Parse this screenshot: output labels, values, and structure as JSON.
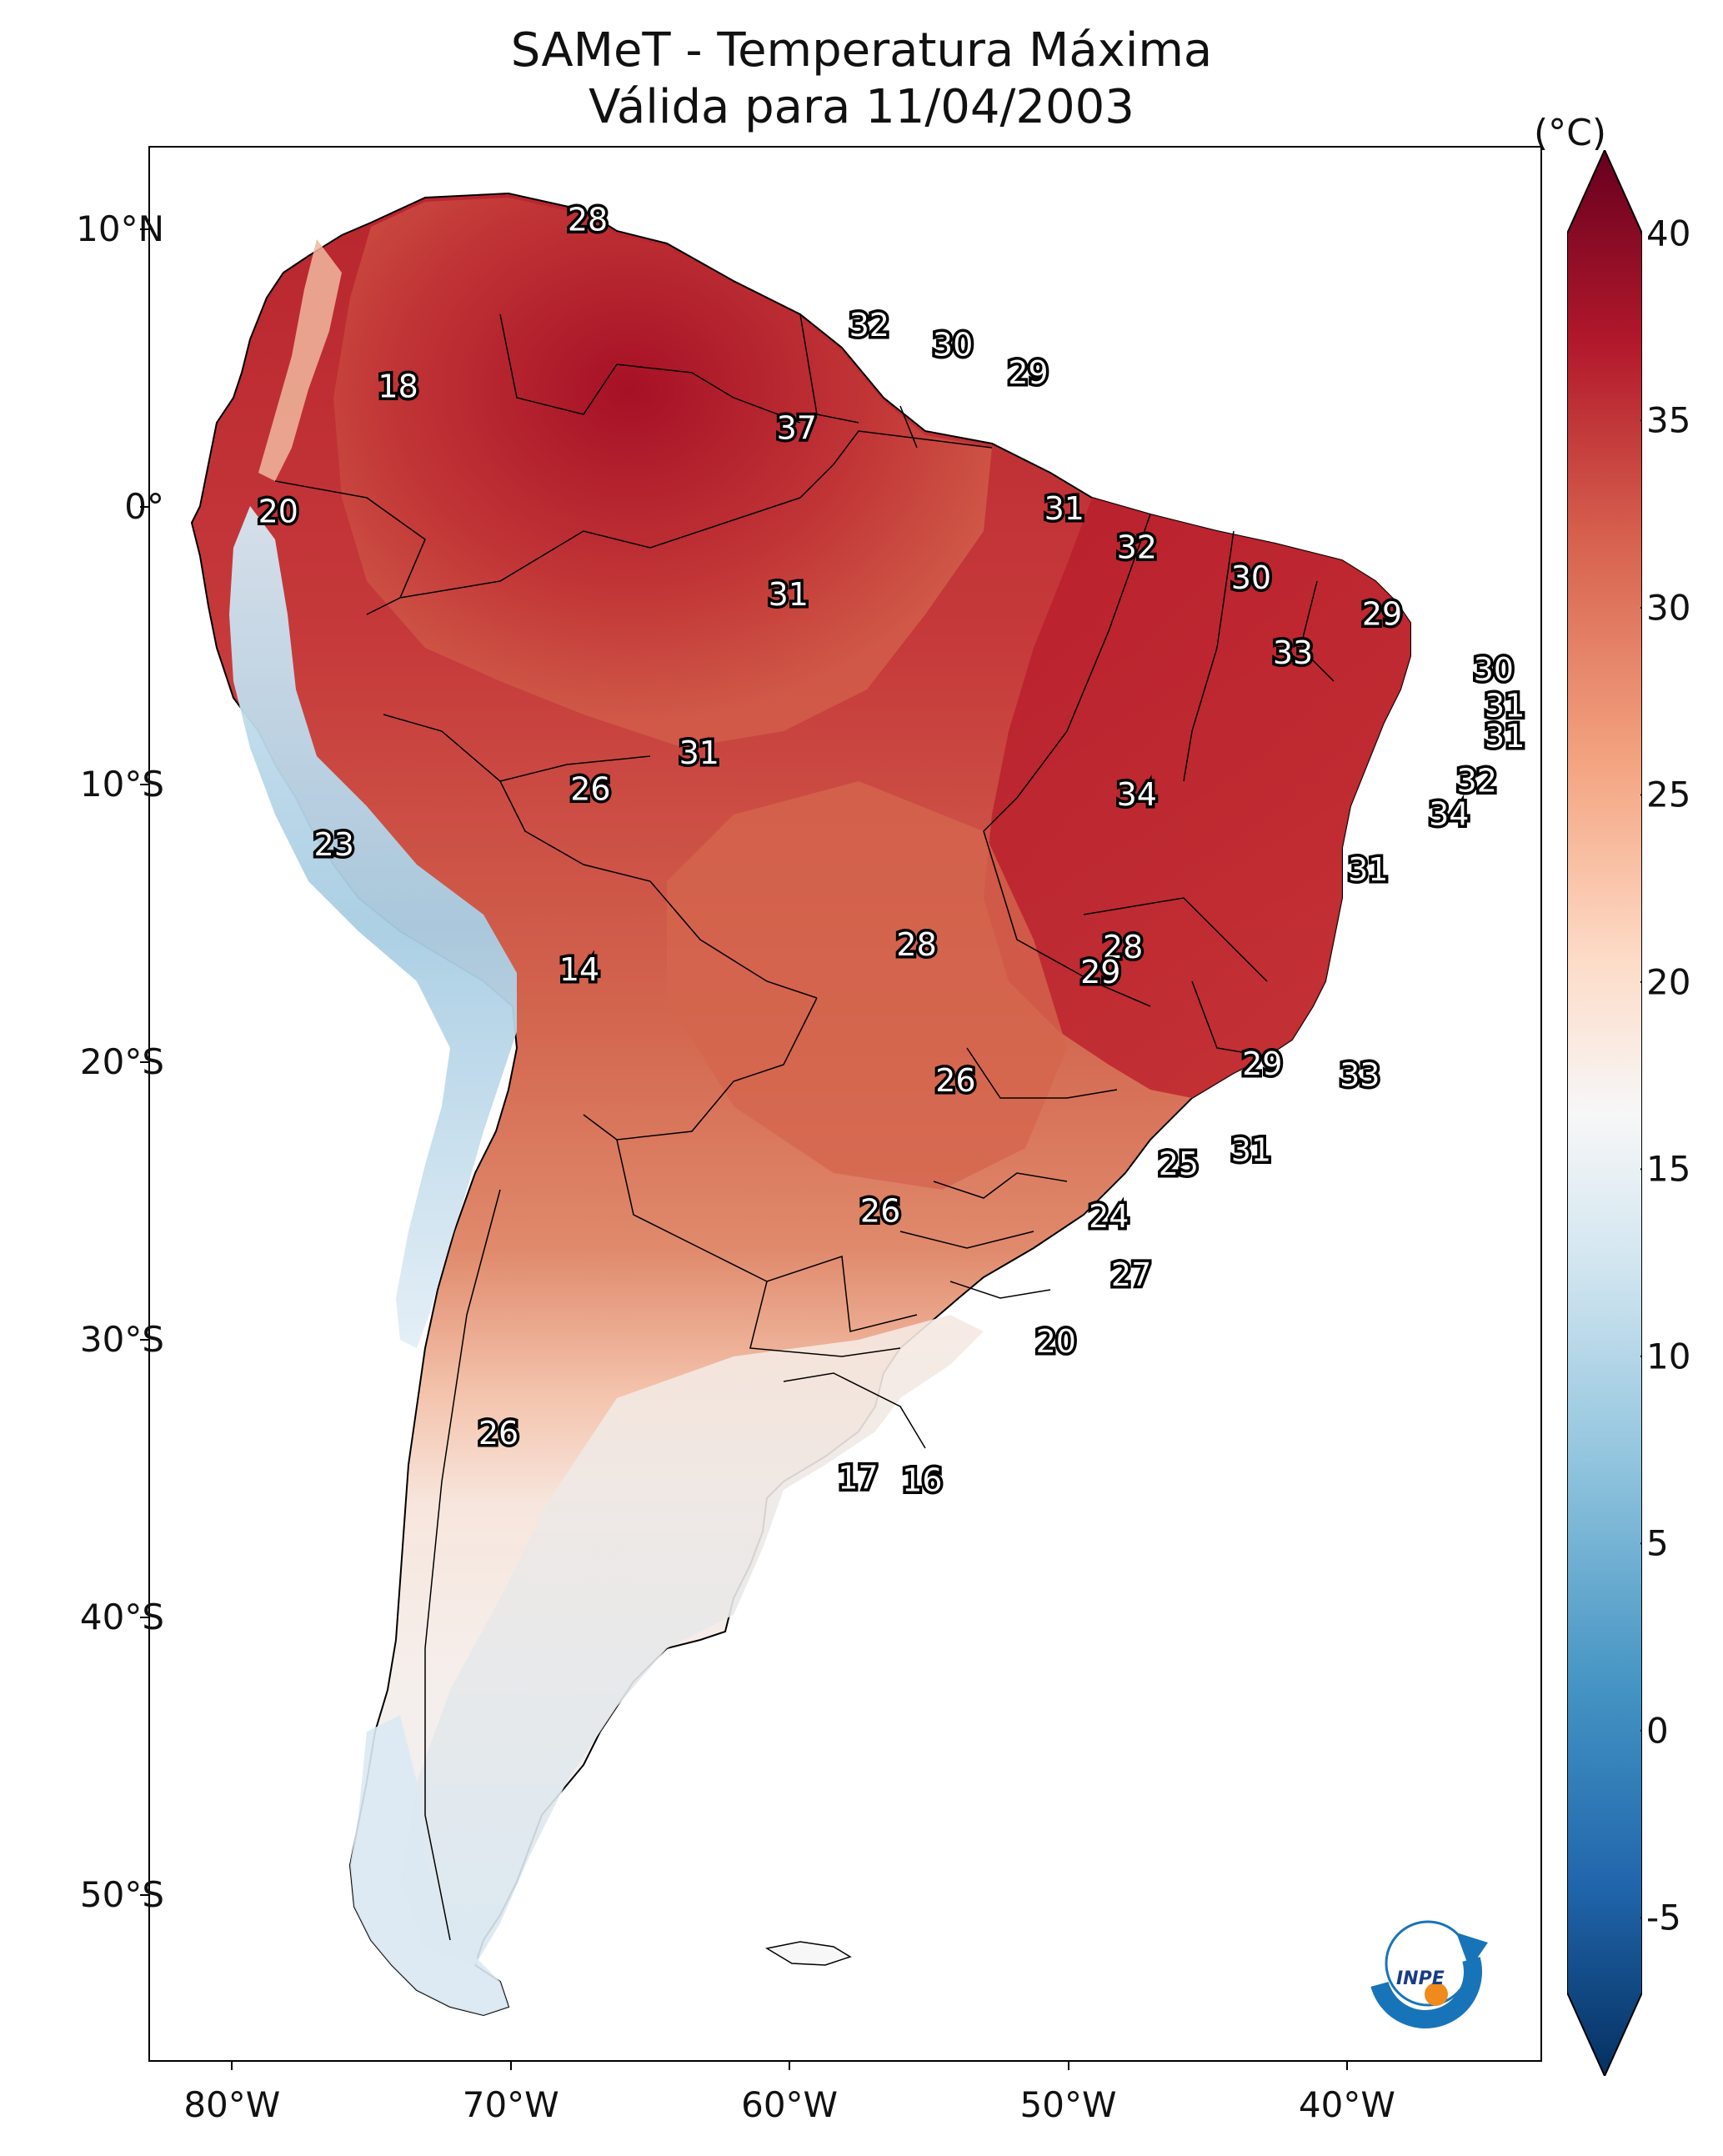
{
  "title": "SAMeT - Temperatura Máxima",
  "subtitle": "Válida para 11/04/2003",
  "colorbar": {
    "unit": "(°C)",
    "ticks": [
      "40",
      "35",
      "30",
      "25",
      "20",
      "15",
      "10",
      "5",
      "0",
      "-5"
    ],
    "range": [
      -7,
      40
    ],
    "colors": [
      "#053061",
      "#2166ac",
      "#4393c3",
      "#92c5de",
      "#d1e5f0",
      "#f7f7f7",
      "#fddbc7",
      "#f4a582",
      "#d6604d",
      "#b2182b",
      "#67001f"
    ]
  },
  "axes": {
    "lat_labels": [
      "10°N",
      "0°",
      "10°S",
      "20°S",
      "30°S",
      "40°S",
      "50°S"
    ],
    "lon_labels": [
      "80°W",
      "70°W",
      "60°W",
      "50°W",
      "40°W"
    ]
  },
  "value_labels": [
    {
      "text": "28",
      "lon": -67.3,
      "lat": 10.4
    },
    {
      "text": "32",
      "lon": -57.2,
      "lat": 6.6
    },
    {
      "text": "30",
      "lon": -54.2,
      "lat": 5.9
    },
    {
      "text": "29",
      "lon": -51.5,
      "lat": 4.9
    },
    {
      "text": "18",
      "lon": -74.1,
      "lat": 4.4
    },
    {
      "text": "37",
      "lon": -59.8,
      "lat": 2.9
    },
    {
      "text": "20",
      "lon": -78.4,
      "lat": -0.1
    },
    {
      "text": "31",
      "lon": -50.2,
      "lat": 0.0
    },
    {
      "text": "32",
      "lon": -47.6,
      "lat": -1.4
    },
    {
      "text": "30",
      "lon": -43.5,
      "lat": -2.5
    },
    {
      "text": "31",
      "lon": -60.1,
      "lat": -3.1
    },
    {
      "text": "29",
      "lon": -38.8,
      "lat": -3.8
    },
    {
      "text": "33",
      "lon": -42.0,
      "lat": -5.2
    },
    {
      "text": "30",
      "lon": -34.8,
      "lat": -5.8
    },
    {
      "text": "31",
      "lon": -34.4,
      "lat": -7.1
    },
    {
      "text": "31",
      "lon": -34.4,
      "lat": -8.2
    },
    {
      "text": "31",
      "lon": -63.3,
      "lat": -8.8
    },
    {
      "text": "32",
      "lon": -35.4,
      "lat": -9.8
    },
    {
      "text": "26",
      "lon": -67.2,
      "lat": -10.1
    },
    {
      "text": "34",
      "lon": -47.6,
      "lat": -10.3
    },
    {
      "text": "34",
      "lon": -36.4,
      "lat": -11.0
    },
    {
      "text": "23",
      "lon": -76.4,
      "lat": -12.1
    },
    {
      "text": "31",
      "lon": -39.3,
      "lat": -13.0
    },
    {
      "text": "28",
      "lon": -55.5,
      "lat": -15.7
    },
    {
      "text": "28",
      "lon": -48.1,
      "lat": -15.8
    },
    {
      "text": "29",
      "lon": -48.9,
      "lat": -16.7
    },
    {
      "text": "14",
      "lon": -67.6,
      "lat": -16.6
    },
    {
      "text": "29",
      "lon": -43.1,
      "lat": -20.0
    },
    {
      "text": "26",
      "lon": -54.1,
      "lat": -20.6
    },
    {
      "text": "33",
      "lon": -39.6,
      "lat": -20.4
    },
    {
      "text": "31",
      "lon": -43.5,
      "lat": -23.1
    },
    {
      "text": "25",
      "lon": -46.1,
      "lat": -23.6
    },
    {
      "text": "24",
      "lon": -48.6,
      "lat": -25.5
    },
    {
      "text": "26",
      "lon": -56.8,
      "lat": -25.3
    },
    {
      "text": "27",
      "lon": -47.8,
      "lat": -27.6
    },
    {
      "text": "20",
      "lon": -50.5,
      "lat": -30.0
    },
    {
      "text": "26",
      "lon": -70.5,
      "lat": -33.3
    },
    {
      "text": "17",
      "lon": -57.6,
      "lat": -34.9
    },
    {
      "text": "16",
      "lon": -55.3,
      "lat": -35.0
    }
  ]
}
